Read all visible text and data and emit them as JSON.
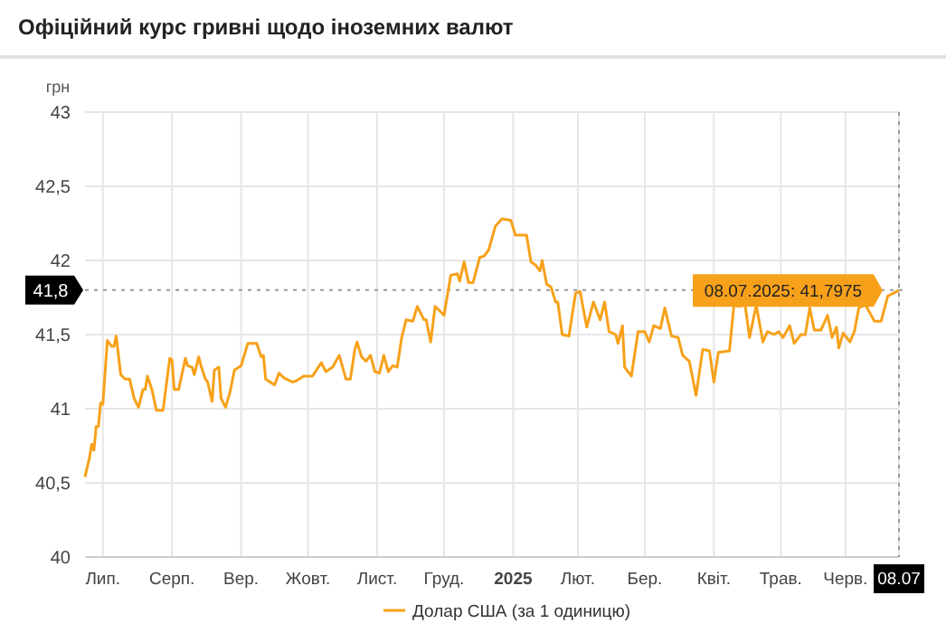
{
  "chart_data": {
    "type": "line",
    "title": "Офіційний курс гривні щодо іноземних валют",
    "ylabel": "грн",
    "xlim": [
      "2024-07-08",
      "2025-07-08"
    ],
    "ylim": [
      40,
      43
    ],
    "yticks": [
      40,
      {
        "value": 40.5,
        "label": "40,5"
      },
      41,
      {
        "value": 41.5,
        "label": "41,5"
      },
      42,
      {
        "value": 42.5,
        "label": "42,5"
      },
      43
    ],
    "xticks": [
      {
        "value": "2024-07-16",
        "label": "Лип."
      },
      {
        "value": "2024-08-16",
        "label": "Серп."
      },
      {
        "value": "2024-09-16",
        "label": "Вер."
      },
      {
        "value": "2024-10-16",
        "label": "Жовт."
      },
      {
        "value": "2024-11-16",
        "label": "Лист."
      },
      {
        "value": "2024-12-16",
        "label": "Груд."
      },
      {
        "value": "2025-01-16",
        "label": "2025"
      },
      {
        "value": "2025-02-14",
        "label": "Лют."
      },
      {
        "value": "2025-03-16",
        "label": "Бер."
      },
      {
        "value": "2025-04-16",
        "label": "Квіт."
      },
      {
        "value": "2025-05-16",
        "label": "Трав."
      },
      {
        "value": "2025-06-14",
        "label": "Черв."
      },
      {
        "value": "2025-07-08",
        "label": "08.07"
      }
    ],
    "grid": true,
    "legend": "bottom",
    "marker": "none",
    "line_style": "solid",
    "ref_lines": [
      {
        "axis": "y",
        "value": 41.8,
        "label": "41,8",
        "color": "#999999",
        "line_style": "dotted"
      },
      {
        "axis": "x",
        "value": "2025-07-08",
        "color": "#999999",
        "line_style": "dotted"
      }
    ],
    "annotations": [
      {
        "text": "08.07.2025: 41,7975",
        "x": "2025-07-08",
        "y": 41.7975
      }
    ],
    "series": [
      {
        "name": "Долар США (за 1 одиницю)",
        "color": "#f7a11a",
        "x": [
          "2024-07-08",
          "2024-07-10",
          "2024-07-11",
          "2024-07-12",
          "2024-07-13",
          "2024-07-14",
          "2024-07-15",
          "2024-07-16",
          "2024-07-18",
          "2024-07-20",
          "2024-07-21",
          "2024-07-22",
          "2024-07-24",
          "2024-07-26",
          "2024-07-28",
          "2024-07-30",
          "2024-08-01",
          "2024-08-03",
          "2024-08-04",
          "2024-08-05",
          "2024-08-07",
          "2024-08-09",
          "2024-08-11",
          "2024-08-12",
          "2024-08-15",
          "2024-08-16",
          "2024-08-17",
          "2024-08-19",
          "2024-08-22",
          "2024-08-23",
          "2024-08-25",
          "2024-08-26",
          "2024-08-28",
          "2024-08-29",
          "2024-08-31",
          "2024-09-01",
          "2024-09-03",
          "2024-09-04",
          "2024-09-06",
          "2024-09-07",
          "2024-09-09",
          "2024-09-11",
          "2024-09-13",
          "2024-09-16",
          "2024-09-19",
          "2024-09-23",
          "2024-09-25",
          "2024-09-26",
          "2024-09-27",
          "2024-10-01",
          "2024-10-03",
          "2024-10-05",
          "2024-10-09",
          "2024-10-11",
          "2024-10-14",
          "2024-10-18",
          "2024-10-22",
          "2024-10-24",
          "2024-10-27",
          "2024-10-30",
          "2024-11-02",
          "2024-11-04",
          "2024-11-06",
          "2024-11-07",
          "2024-11-09",
          "2024-11-11",
          "2024-11-13",
          "2024-11-15",
          "2024-11-17",
          "2024-11-19",
          "2024-11-21",
          "2024-11-23",
          "2024-11-25",
          "2024-11-27",
          "2024-11-29",
          "2024-12-02",
          "2024-12-04",
          "2024-12-07",
          "2024-12-08",
          "2024-12-10",
          "2024-12-12",
          "2024-12-14",
          "2024-12-16",
          "2024-12-19",
          "2024-12-22",
          "2024-12-23",
          "2024-12-25",
          "2024-12-27",
          "2024-12-29",
          "2025-01-01",
          "2025-01-03",
          "2025-01-05",
          "2025-01-08",
          "2025-01-11",
          "2025-01-15",
          "2025-01-17",
          "2025-01-19",
          "2025-01-22",
          "2025-01-24",
          "2025-01-26",
          "2025-01-28",
          "2025-01-29",
          "2025-01-31",
          "2025-02-02",
          "2025-02-04",
          "2025-02-05",
          "2025-02-07",
          "2025-02-10",
          "2025-02-13",
          "2025-02-15",
          "2025-02-18",
          "2025-02-21",
          "2025-02-24",
          "2025-02-26",
          "2025-02-28",
          "2025-03-03",
          "2025-03-04",
          "2025-03-06",
          "2025-03-07",
          "2025-03-10",
          "2025-03-13",
          "2025-03-16",
          "2025-03-18",
          "2025-03-20",
          "2025-03-23",
          "2025-03-25",
          "2025-03-28",
          "2025-03-31",
          "2025-04-02",
          "2025-04-05",
          "2025-04-08",
          "2025-04-11",
          "2025-04-14",
          "2025-04-16",
          "2025-04-18",
          "2025-04-23",
          "2025-04-25",
          "2025-04-27",
          "2025-04-30",
          "2025-05-02",
          "2025-05-05",
          "2025-05-08",
          "2025-05-10",
          "2025-05-13",
          "2025-05-15",
          "2025-05-17",
          "2025-05-20",
          "2025-05-22",
          "2025-05-25",
          "2025-05-27",
          "2025-05-29",
          "2025-05-31",
          "2025-06-03",
          "2025-06-06",
          "2025-06-08",
          "2025-06-10",
          "2025-06-11",
          "2025-06-13",
          "2025-06-16",
          "2025-06-18",
          "2025-06-20",
          "2025-06-23",
          "2025-06-27",
          "2025-06-30",
          "2025-07-03",
          "2025-07-08"
        ],
        "values": [
          40.54,
          40.67,
          40.76,
          40.72,
          40.88,
          40.88,
          41.04,
          41.03,
          41.46,
          41.42,
          41.42,
          41.49,
          41.23,
          41.2,
          41.2,
          41.07,
          41.01,
          41.13,
          41.13,
          41.22,
          41.13,
          40.99,
          40.99,
          40.99,
          41.34,
          41.33,
          41.13,
          41.13,
          41.34,
          41.29,
          41.28,
          41.23,
          41.35,
          41.29,
          41.2,
          41.18,
          41.05,
          41.26,
          41.28,
          41.07,
          41.01,
          41.11,
          41.26,
          41.29,
          41.44,
          41.44,
          41.35,
          41.36,
          41.2,
          41.16,
          41.24,
          41.21,
          41.18,
          41.19,
          41.22,
          41.22,
          41.31,
          41.25,
          41.28,
          41.36,
          41.2,
          41.2,
          41.4,
          41.45,
          41.35,
          41.32,
          41.36,
          41.25,
          41.24,
          41.36,
          41.25,
          41.29,
          41.28,
          41.48,
          41.6,
          41.59,
          41.69,
          41.6,
          41.6,
          41.45,
          41.69,
          41.66,
          41.63,
          41.9,
          41.91,
          41.86,
          41.99,
          41.85,
          41.85,
          42.02,
          42.03,
          42.07,
          42.23,
          42.28,
          42.27,
          42.17,
          42.17,
          42.17,
          41.99,
          41.97,
          41.93,
          42.0,
          41.84,
          41.82,
          41.72,
          41.72,
          41.5,
          41.49,
          41.78,
          41.79,
          41.55,
          41.72,
          41.6,
          41.72,
          41.52,
          41.5,
          41.44,
          41.56,
          41.28,
          41.22,
          41.52,
          41.52,
          41.45,
          41.56,
          41.54,
          41.68,
          41.49,
          41.48,
          41.36,
          41.32,
          41.09,
          41.4,
          41.39,
          41.18,
          41.38,
          41.39,
          41.7,
          41.69,
          41.7,
          41.48,
          41.7,
          41.45,
          41.52,
          41.5,
          41.52,
          41.48,
          41.56,
          41.44,
          41.5,
          41.5,
          41.68,
          41.53,
          41.53,
          41.63,
          41.48,
          41.55,
          41.41,
          41.51,
          41.45,
          41.52,
          41.68,
          41.7,
          41.59,
          41.59,
          41.76,
          41.7975
        ]
      }
    ]
  }
}
